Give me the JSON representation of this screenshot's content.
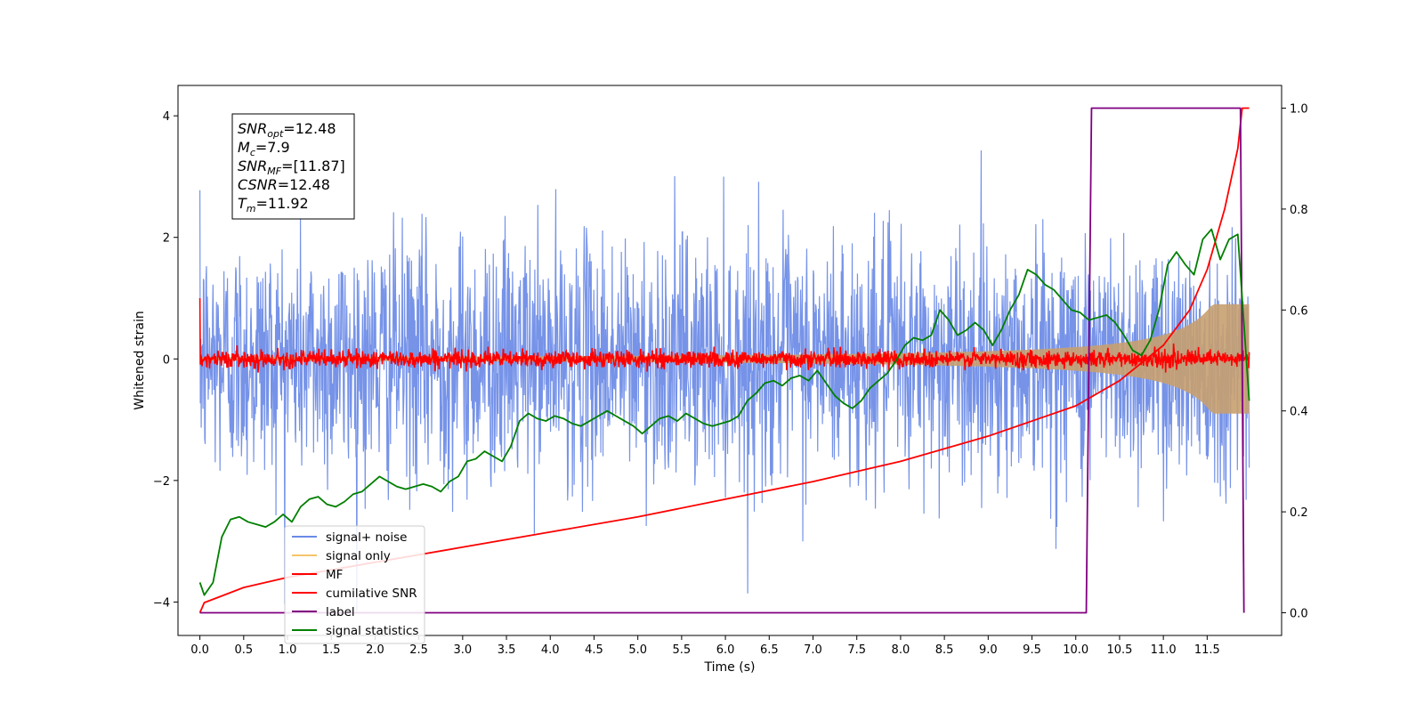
{
  "chart_data": {
    "type": "line",
    "xlabel": "Time (s)",
    "ylabel": "Whitened strain",
    "xlim": [
      -0.25,
      12.35
    ],
    "ylim": [
      -4.55,
      4.5
    ],
    "y2lim": [
      -0.045,
      1.045
    ],
    "x_ticks": [
      "0.0",
      "0.5",
      "1.0",
      "1.5",
      "2.0",
      "2.5",
      "3.0",
      "3.5",
      "4.0",
      "4.5",
      "5.0",
      "5.5",
      "6.0",
      "6.5",
      "7.0",
      "7.5",
      "8.0",
      "8.5",
      "9.0",
      "9.5",
      "10.0",
      "10.5",
      "11.0",
      "11.5"
    ],
    "y_ticks": [
      "4",
      "2",
      "0",
      "−2",
      "−4"
    ],
    "y2_ticks": [
      "1.0",
      "0.8",
      "0.6",
      "0.4",
      "0.2",
      "0.0"
    ],
    "annotation": {
      "snr_opt": {
        "sym": "SNR",
        "sub": "opt",
        "value": "=12.48"
      },
      "mc": {
        "sym": "M",
        "sub": "c",
        "value": "=7.9"
      },
      "snr_mf": {
        "sym": "SNR",
        "sub": "MF",
        "value": "=[11.87]"
      },
      "csnr": {
        "sym": "CSNR",
        "sub": "",
        "value": "=12.48"
      },
      "tm": {
        "sym": "T",
        "sub": "m",
        "value": "=11.92"
      }
    },
    "legend": {
      "position": "lower-left",
      "entries": [
        {
          "label": "signal+ noise",
          "color": "#6a8ae6"
        },
        {
          "label": "signal only",
          "color": "#f5c46a"
        },
        {
          "label": "MF",
          "color": "#ff0000"
        },
        {
          "label": "cumilative SNR",
          "color": "#ff0000"
        },
        {
          "label": "label",
          "color": "#800080"
        },
        {
          "label": "signal statistics",
          "color": "#007f00"
        }
      ]
    },
    "series": [
      {
        "name": "signal+ noise",
        "axis": "left",
        "color": "#6a8ae6",
        "kind": "noise",
        "x_range": [
          0,
          11.98
        ],
        "sigma": 1.0,
        "peak_max": 4.1,
        "peak_min": -4.15
      },
      {
        "name": "signal only",
        "axis": "left",
        "color": "#c8a070",
        "kind": "chirp",
        "x_range": [
          0,
          11.98
        ],
        "envelope_start": 0.03,
        "envelope_end": 0.9
      },
      {
        "name": "MF",
        "axis": "left",
        "color": "#ff0000",
        "kind": "noise",
        "x_range": [
          0,
          11.98
        ],
        "sigma": 0.07,
        "start_spike": 1.0
      },
      {
        "name": "cumilative SNR",
        "axis": "right",
        "color": "#ff0000",
        "x": [
          0,
          0.05,
          0.5,
          1.0,
          2.0,
          3.0,
          4.0,
          5.0,
          6.0,
          7.0,
          8.0,
          9.0,
          9.5,
          10.0,
          10.5,
          11.0,
          11.3,
          11.5,
          11.7,
          11.85,
          11.9,
          11.98
        ],
        "y": [
          0.0,
          0.02,
          0.05,
          0.07,
          0.1,
          0.13,
          0.16,
          0.19,
          0.225,
          0.26,
          0.3,
          0.35,
          0.38,
          0.41,
          0.46,
          0.53,
          0.6,
          0.68,
          0.8,
          0.92,
          1.0,
          1.0
        ]
      },
      {
        "name": "label",
        "axis": "right",
        "color": "#800080",
        "x": [
          0,
          10.12,
          10.18,
          11.88,
          11.92
        ],
        "y": [
          0,
          0,
          1,
          1,
          0
        ]
      },
      {
        "name": "signal statistics",
        "axis": "right",
        "color": "#007f00",
        "x": [
          0.0,
          0.05,
          0.15,
          0.25,
          0.35,
          0.45,
          0.55,
          0.65,
          0.75,
          0.85,
          0.95,
          1.05,
          1.15,
          1.25,
          1.35,
          1.45,
          1.55,
          1.65,
          1.75,
          1.85,
          1.95,
          2.05,
          2.15,
          2.25,
          2.35,
          2.45,
          2.55,
          2.65,
          2.75,
          2.85,
          2.95,
          3.05,
          3.15,
          3.25,
          3.35,
          3.45,
          3.55,
          3.65,
          3.75,
          3.85,
          3.95,
          4.05,
          4.15,
          4.25,
          4.35,
          4.45,
          4.55,
          4.65,
          4.75,
          4.85,
          4.95,
          5.05,
          5.15,
          5.25,
          5.35,
          5.45,
          5.55,
          5.65,
          5.75,
          5.85,
          5.95,
          6.05,
          6.15,
          6.25,
          6.35,
          6.45,
          6.55,
          6.65,
          6.75,
          6.85,
          6.95,
          7.05,
          7.15,
          7.25,
          7.35,
          7.45,
          7.55,
          7.65,
          7.75,
          7.85,
          7.95,
          8.05,
          8.15,
          8.25,
          8.35,
          8.45,
          8.55,
          8.65,
          8.75,
          8.85,
          8.95,
          9.05,
          9.15,
          9.25,
          9.35,
          9.45,
          9.55,
          9.65,
          9.75,
          9.85,
          9.95,
          10.05,
          10.15,
          10.25,
          10.35,
          10.45,
          10.55,
          10.65,
          10.75,
          10.85,
          10.95,
          11.05,
          11.15,
          11.25,
          11.35,
          11.45,
          11.55,
          11.65,
          11.75,
          11.85,
          11.98
        ],
        "y": [
          0.06,
          0.035,
          0.06,
          0.15,
          0.185,
          0.19,
          0.18,
          0.175,
          0.17,
          0.18,
          0.195,
          0.18,
          0.21,
          0.225,
          0.23,
          0.215,
          0.21,
          0.22,
          0.235,
          0.24,
          0.255,
          0.27,
          0.26,
          0.25,
          0.245,
          0.25,
          0.255,
          0.25,
          0.24,
          0.26,
          0.27,
          0.3,
          0.305,
          0.32,
          0.31,
          0.3,
          0.33,
          0.38,
          0.395,
          0.385,
          0.38,
          0.39,
          0.385,
          0.375,
          0.37,
          0.38,
          0.39,
          0.4,
          0.39,
          0.38,
          0.37,
          0.355,
          0.37,
          0.385,
          0.39,
          0.38,
          0.395,
          0.385,
          0.375,
          0.37,
          0.375,
          0.38,
          0.39,
          0.42,
          0.435,
          0.455,
          0.46,
          0.45,
          0.465,
          0.47,
          0.46,
          0.48,
          0.455,
          0.43,
          0.415,
          0.405,
          0.42,
          0.445,
          0.46,
          0.475,
          0.5,
          0.53,
          0.545,
          0.54,
          0.55,
          0.6,
          0.58,
          0.55,
          0.56,
          0.575,
          0.56,
          0.53,
          0.56,
          0.6,
          0.63,
          0.68,
          0.67,
          0.65,
          0.64,
          0.62,
          0.6,
          0.595,
          0.58,
          0.585,
          0.59,
          0.575,
          0.55,
          0.52,
          0.51,
          0.54,
          0.6,
          0.69,
          0.715,
          0.69,
          0.67,
          0.74,
          0.76,
          0.7,
          0.74,
          0.75,
          0.42
        ]
      }
    ]
  }
}
